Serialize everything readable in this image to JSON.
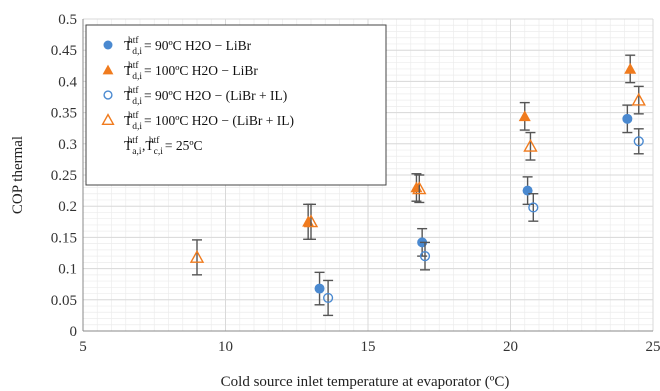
{
  "chart_data": {
    "type": "scatter",
    "xlabel": "Cold source inlet temperature at evaporator (ºC)",
    "ylabel": "COP thermal",
    "xlim": [
      5,
      25
    ],
    "ylim": [
      0,
      0.5
    ],
    "x_ticks": [
      "5",
      "10",
      "15",
      "20",
      "25"
    ],
    "y_ticks": [
      "0",
      "0.05",
      "0.1",
      "0.15",
      "0.2",
      "0.25",
      "0.3",
      "0.35",
      "0.4",
      "0.45",
      "0.5"
    ],
    "grid": "major and minor",
    "legend_position": "top-left",
    "colors": {
      "blue": "#4a89d0",
      "orange": "#f07b1e",
      "error_bar": "#555555",
      "grid": "#d9d9d9"
    },
    "series": [
      {
        "name": "90ºC H2O − LiBr",
        "marker": "circle-filled",
        "color": "#4a89d0",
        "points": [
          {
            "x": 13.3,
            "y": 0.068,
            "err": 0.026
          },
          {
            "x": 16.9,
            "y": 0.142,
            "err": 0.022
          },
          {
            "x": 20.6,
            "y": 0.225,
            "err": 0.022
          },
          {
            "x": 24.1,
            "y": 0.34,
            "err": 0.022
          }
        ]
      },
      {
        "name": "100ºC H2O − LiBr",
        "marker": "triangle-filled",
        "color": "#f07b1e",
        "points": [
          {
            "x": 12.9,
            "y": 0.175,
            "err": 0.028
          },
          {
            "x": 16.7,
            "y": 0.23,
            "err": 0.022
          },
          {
            "x": 20.5,
            "y": 0.344,
            "err": 0.022
          },
          {
            "x": 24.2,
            "y": 0.42,
            "err": 0.022
          }
        ]
      },
      {
        "name": "90ºC H2O − (LiBr + IL)",
        "marker": "circle-open",
        "color": "#4a89d0",
        "points": [
          {
            "x": 13.6,
            "y": 0.053,
            "err": 0.028
          },
          {
            "x": 17.0,
            "y": 0.12,
            "err": 0.022
          },
          {
            "x": 20.8,
            "y": 0.198,
            "err": 0.022
          },
          {
            "x": 24.5,
            "y": 0.304,
            "err": 0.02
          }
        ]
      },
      {
        "name": "100ºC H2O − (LiBr + IL)",
        "marker": "triangle-open",
        "color": "#f07b1e",
        "points": [
          {
            "x": 9.0,
            "y": 0.118,
            "err": 0.028
          },
          {
            "x": 13.0,
            "y": 0.175,
            "err": 0.028
          },
          {
            "x": 16.8,
            "y": 0.228,
            "err": 0.022
          },
          {
            "x": 20.7,
            "y": 0.296,
            "err": 0.022
          },
          {
            "x": 24.5,
            "y": 0.37,
            "err": 0.022
          }
        ]
      }
    ],
    "legend": {
      "entries": [
        {
          "sym": "T",
          "sub": "d,i",
          "sup": "htf",
          "eq": " =  90ºC H2O − LiBr"
        },
        {
          "sym": "T",
          "sub": "d,i",
          "sup": "htf",
          "eq": " =  100ºC H2O − LiBr"
        },
        {
          "sym": "T",
          "sub": "d,i",
          "sup": "htf",
          "eq": " =  90ºC H2O − (LiBr + IL)"
        },
        {
          "sym": "T",
          "sub": "d,i",
          "sup": "htf",
          "eq": " =  100ºC H2O − (LiBr + IL)"
        }
      ],
      "note": {
        "sym1": "T",
        "sub1": "a,i",
        "sup1": "htf",
        "sep": ",",
        "sym2": "T",
        "sub2": "c,i",
        "sup2": "htf",
        "eq": " =  25ºC"
      }
    }
  }
}
